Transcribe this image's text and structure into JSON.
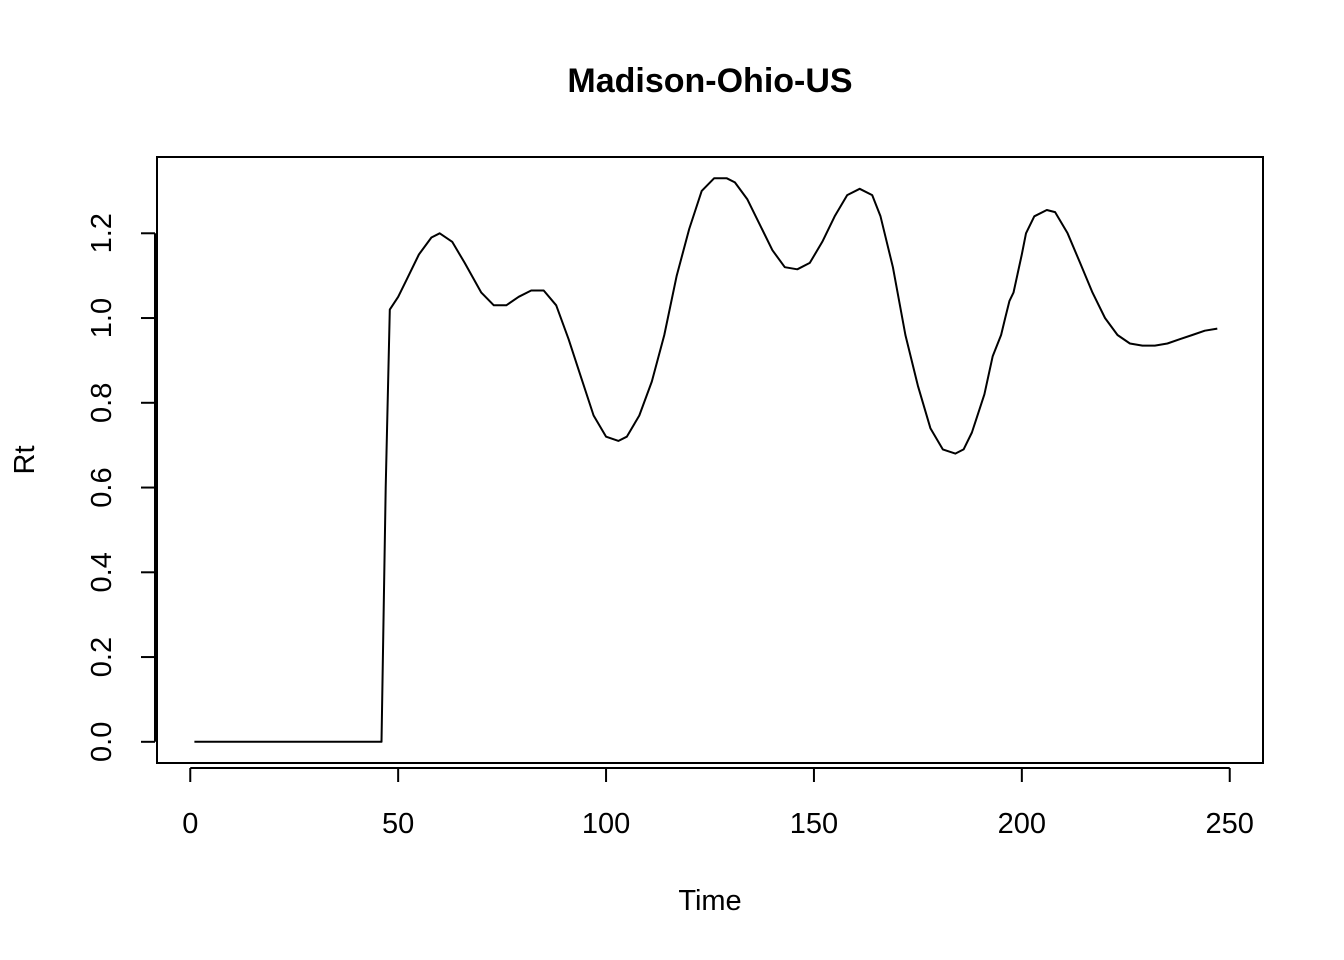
{
  "chart_data": {
    "type": "line",
    "title": "Madison-Ohio-US",
    "xlabel": "Time",
    "ylabel": "Rt",
    "xlim": [
      -8,
      258
    ],
    "ylim": [
      -0.05,
      1.38
    ],
    "x_ticks": [
      0,
      50,
      100,
      150,
      200,
      250
    ],
    "x_tick_labels": [
      "0",
      "50",
      "100",
      "150",
      "200",
      "250"
    ],
    "y_ticks": [
      0.0,
      0.2,
      0.4,
      0.6,
      0.8,
      1.0,
      1.2
    ],
    "y_tick_labels": [
      "0.0",
      "0.2",
      "0.4",
      "0.6",
      "0.8",
      "1.0",
      "1.2"
    ],
    "grid": false,
    "colors": {
      "line": "#000000",
      "background": "#ffffff"
    },
    "series": [
      {
        "x": [
          1,
          10,
          20,
          30,
          40,
          46,
          47,
          48,
          50,
          52,
          55,
          58,
          60,
          63,
          66,
          70,
          73,
          76,
          79,
          82,
          85,
          88,
          91,
          94,
          97,
          100,
          103,
          105,
          108,
          111,
          114,
          117,
          120,
          123,
          126,
          129,
          131,
          134,
          137,
          140,
          143,
          146,
          149,
          152,
          155,
          158,
          161,
          164,
          166,
          169,
          172,
          175,
          178,
          181,
          184,
          186,
          188,
          189,
          191,
          193,
          195,
          196,
          197,
          198,
          200,
          201,
          203,
          206,
          208,
          211,
          214,
          217,
          220,
          223,
          226,
          229,
          232,
          235,
          238,
          241,
          244,
          247
        ],
        "y": [
          0,
          0,
          0,
          0,
          0,
          0,
          0.6,
          1.02,
          1.05,
          1.09,
          1.15,
          1.19,
          1.2,
          1.18,
          1.13,
          1.06,
          1.03,
          1.03,
          1.05,
          1.065,
          1.065,
          1.03,
          0.95,
          0.86,
          0.77,
          0.72,
          0.71,
          0.72,
          0.77,
          0.85,
          0.96,
          1.1,
          1.21,
          1.3,
          1.33,
          1.33,
          1.32,
          1.28,
          1.22,
          1.16,
          1.12,
          1.115,
          1.13,
          1.18,
          1.24,
          1.29,
          1.305,
          1.29,
          1.24,
          1.12,
          0.96,
          0.84,
          0.74,
          0.69,
          0.68,
          0.69,
          0.73,
          0.76,
          0.82,
          0.91,
          0.96,
          1.0,
          1.04,
          1.06,
          1.15,
          1.2,
          1.24,
          1.255,
          1.25,
          1.2,
          1.13,
          1.06,
          1.0,
          0.96,
          0.94,
          0.935,
          0.935,
          0.94,
          0.95,
          0.96,
          0.97,
          0.975
        ]
      }
    ]
  }
}
